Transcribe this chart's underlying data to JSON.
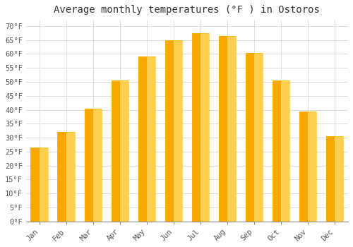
{
  "title": "Average monthly temperatures (°F ) in Ostoros",
  "months": [
    "Jan",
    "Feb",
    "Mar",
    "Apr",
    "May",
    "Jun",
    "Jul",
    "Aug",
    "Sep",
    "Oct",
    "Nov",
    "Dec"
  ],
  "values": [
    26.5,
    32.0,
    40.5,
    50.5,
    59.0,
    65.0,
    67.5,
    66.5,
    60.5,
    50.5,
    39.5,
    30.5
  ],
  "bar_color_left": "#F5A623",
  "bar_color_right": "#FFC84A",
  "ylim": [
    0,
    72
  ],
  "yticks": [
    0,
    5,
    10,
    15,
    20,
    25,
    30,
    35,
    40,
    45,
    50,
    55,
    60,
    65,
    70
  ],
  "background_color": "#FFFFFF",
  "plot_bg_color": "#FFFFFF",
  "grid_color": "#DDDDDD",
  "title_fontsize": 10,
  "tick_fontsize": 7.5,
  "font_family": "monospace",
  "bar_width": 0.65
}
